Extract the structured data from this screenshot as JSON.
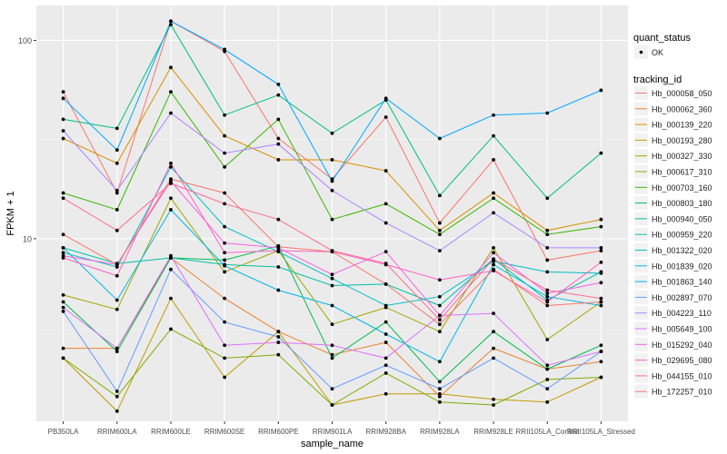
{
  "chart_data": {
    "type": "line",
    "xlabel": "sample_name",
    "ylabel": "FPKM + 1",
    "y_scale": "log10",
    "ylim": [
      1.2,
      150
    ],
    "y_ticks": [
      {
        "value": 10,
        "label": "10"
      },
      {
        "value": 100,
        "label": "100"
      }
    ],
    "grid": true,
    "legend_position": "right",
    "categories": [
      "PB350LA",
      "RRIM600LA",
      "RRIM600LE",
      "RRIM600SE",
      "RRIM600PE",
      "RRIM901LA",
      "RRIM928BA",
      "RRIM928LA",
      "RRIM928LE",
      "RRII105LA_Control",
      "RRII105LA_Stressed"
    ],
    "points_legend": {
      "title": "quant_status",
      "label": "OK"
    },
    "series_legend_title": "tracking_id",
    "series": [
      {
        "name": "Hb_000058_050",
        "color": "#F8766D",
        "values": [
          55,
          17,
          125,
          88,
          32,
          20,
          41,
          12,
          25,
          7.8,
          8.7
        ]
      },
      {
        "name": "Hb_000062_360",
        "color": "#EA8331",
        "values": [
          2.8,
          2.8,
          8,
          5,
          3.4,
          2.6,
          3,
          1.6,
          2.8,
          2.2,
          2.4
        ]
      },
      {
        "name": "Hb_000139_220",
        "color": "#D89000",
        "values": [
          32,
          24,
          73,
          33,
          25,
          25,
          22,
          11,
          17,
          11,
          12.5
        ]
      },
      {
        "name": "Hb_000193_280",
        "color": "#C09B00",
        "values": [
          2.5,
          1.35,
          5,
          2,
          3.4,
          1.45,
          1.65,
          1.65,
          1.55,
          1.5,
          2
        ]
      },
      {
        "name": "Hb_000327_330",
        "color": "#A3A500",
        "values": [
          5.2,
          4.4,
          16,
          6.8,
          8.7,
          3.7,
          4.5,
          3.4,
          9,
          3.1,
          4.8
        ]
      },
      {
        "name": "Hb_000617_310",
        "color": "#7CAE00",
        "values": [
          2.5,
          1.6,
          3.5,
          2.5,
          2.6,
          1.45,
          2.1,
          1.5,
          1.45,
          1.95,
          2
        ]
      },
      {
        "name": "Hb_000703_160",
        "color": "#39B600",
        "values": [
          17,
          14,
          55,
          23,
          40,
          12.5,
          15,
          10.5,
          16,
          10.5,
          11.5
        ]
      },
      {
        "name": "Hb_000803_180",
        "color": "#00BB4E",
        "values": [
          4.8,
          2.7,
          8,
          7.8,
          9.2,
          2.5,
          3.8,
          1.9,
          3.4,
          2.2,
          2.9
        ]
      },
      {
        "name": "Hb_000940_050",
        "color": "#00BF7D",
        "values": [
          40,
          36,
          120,
          42,
          53,
          34,
          50,
          16.5,
          33,
          16,
          27
        ]
      },
      {
        "name": "Hb_000959_220",
        "color": "#00C1A3",
        "values": [
          9,
          7.5,
          8,
          7.4,
          7.2,
          5.8,
          5.9,
          4.6,
          7.9,
          4.9,
          6.8
        ]
      },
      {
        "name": "Hb_001322_020",
        "color": "#00BFC4",
        "values": [
          8.5,
          7.2,
          23,
          11.5,
          8.6,
          6.3,
          4.6,
          5.1,
          7.7,
          6.8,
          6.7
        ]
      },
      {
        "name": "Hb_001839_020",
        "color": "#00B8E7",
        "values": [
          9,
          4.9,
          14,
          7.3,
          5.5,
          4.6,
          3.3,
          2.4,
          7.4,
          5.1,
          4.6
        ]
      },
      {
        "name": "Hb_001863_140",
        "color": "#00A9FF",
        "values": [
          51,
          28,
          125,
          90,
          60,
          19.5,
          51,
          32,
          42,
          43,
          56
        ]
      },
      {
        "name": "Hb_002897_070",
        "color": "#619CFF",
        "values": [
          4.3,
          1.7,
          7,
          3.8,
          3.2,
          1.75,
          2.3,
          1.75,
          2.5,
          1.75,
          2.7
        ]
      },
      {
        "name": "Hb_004223_110",
        "color": "#AE87FF",
        "values": [
          35,
          17.5,
          43,
          27,
          30,
          17.5,
          12,
          8.7,
          13.5,
          9,
          9
        ]
      },
      {
        "name": "Hb_005649_100",
        "color": "#DB72FB",
        "values": [
          4.5,
          2.8,
          8.2,
          2.9,
          3,
          2.9,
          2.5,
          4.1,
          4.2,
          2.3,
          2.7
        ]
      },
      {
        "name": "Hb_015292_040",
        "color": "#F564E3",
        "values": [
          8.2,
          7.4,
          19.5,
          9.5,
          9,
          6.6,
          8.6,
          4.1,
          8.5,
          5.3,
          6
        ]
      },
      {
        "name": "Hb_029695_080",
        "color": "#FF61C3",
        "values": [
          8,
          6.5,
          24,
          8.5,
          8.7,
          8.6,
          7.4,
          6.2,
          6.9,
          4.8,
          7.6
        ]
      },
      {
        "name": "Hb_044155_010",
        "color": "#FF6C91",
        "values": [
          16,
          11,
          19,
          15,
          12.5,
          8.7,
          7.5,
          3.9,
          7.9,
          5.5,
          5
        ]
      },
      {
        "name": "Hb_172257_010",
        "color": "#F8766D",
        "values": [
          10.5,
          7.4,
          20,
          17,
          9.1,
          8.6,
          5.9,
          3.7,
          7,
          4.6,
          4.8
        ]
      }
    ]
  }
}
